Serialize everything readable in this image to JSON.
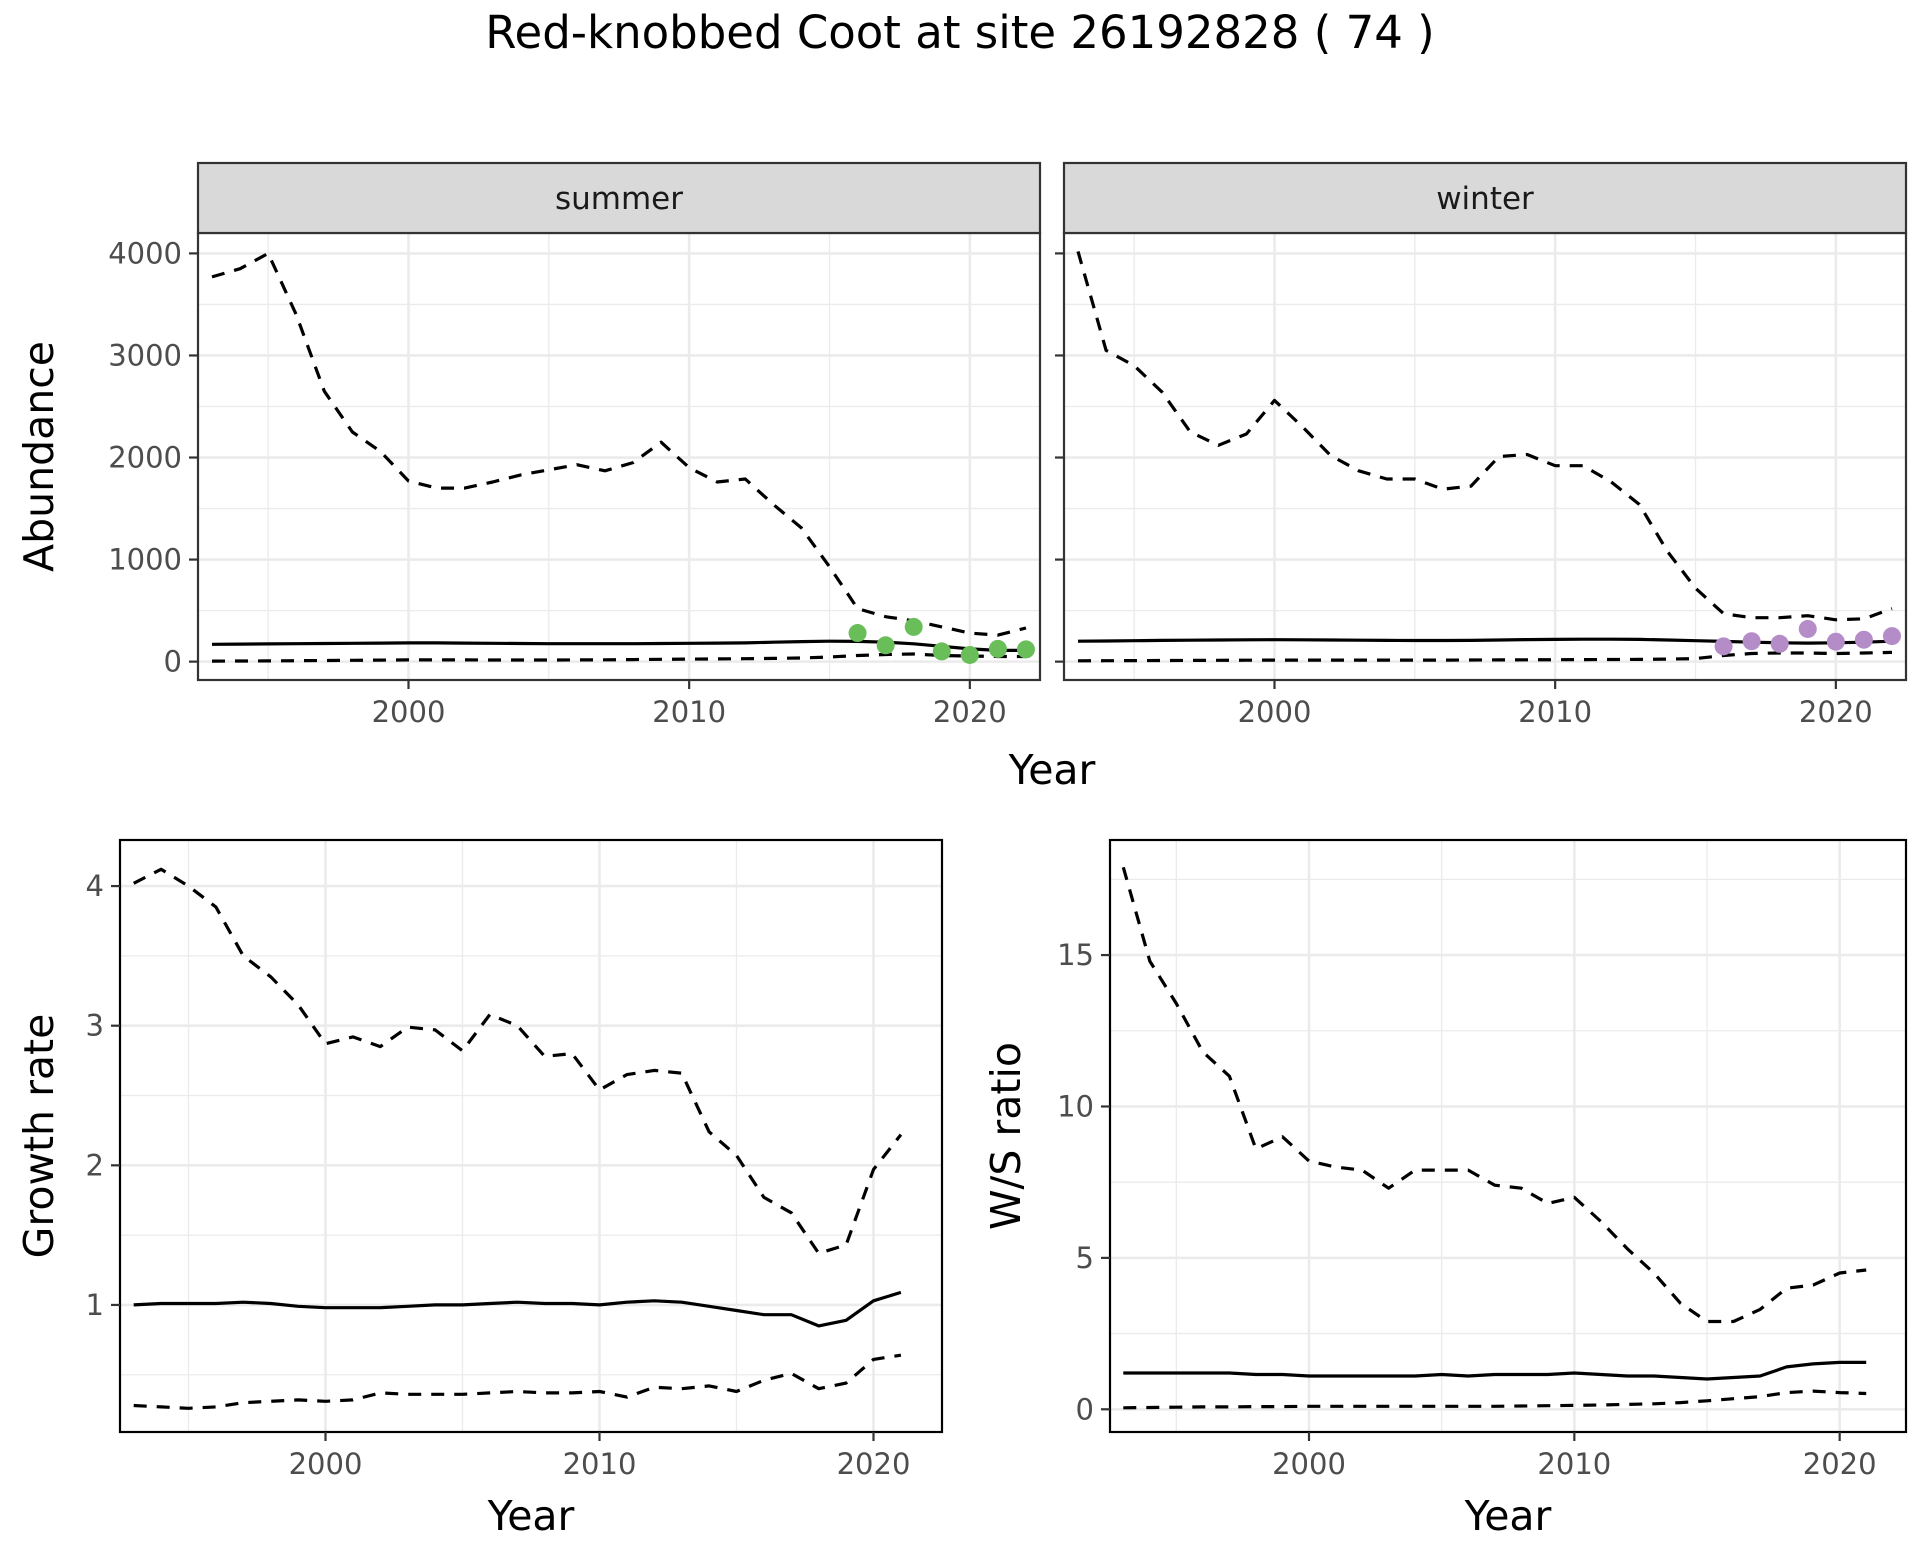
{
  "title": "Red-knobbed Coot at site 26192828 ( 74 )",
  "top_xlabel": "Year",
  "colors": {
    "summer_points": "#6abe5a",
    "winter_points": "#b48cc8",
    "grid": "#ebebeb",
    "strip_fill": "#d9d9d9",
    "line": "#000000"
  },
  "chart_data": [
    {
      "type": "line",
      "panel": "summer",
      "strip_label": "summer",
      "xlabel": "Year",
      "ylabel": "Abundance",
      "xlim": [
        1992.5,
        2022.5
      ],
      "ylim": [
        -180,
        4200
      ],
      "xticks": [
        2000,
        2010,
        2020
      ],
      "yticks": [
        0,
        1000,
        2000,
        3000,
        4000
      ],
      "grid": true,
      "x": [
        1993,
        1994,
        1995,
        1996,
        1997,
        1998,
        1999,
        2000,
        2001,
        2002,
        2003,
        2004,
        2005,
        2006,
        2007,
        2008,
        2009,
        2010,
        2011,
        2012,
        2013,
        2014,
        2015,
        2016,
        2017,
        2018,
        2019,
        2020,
        2021,
        2022
      ],
      "series": [
        {
          "role": "estimate",
          "style": "solid",
          "values": [
            170,
            172,
            174,
            176,
            178,
            180,
            182,
            184,
            184,
            182,
            180,
            178,
            176,
            176,
            176,
            176,
            178,
            180,
            182,
            184,
            190,
            196,
            200,
            198,
            190,
            175,
            150,
            125,
            110,
            110
          ]
        },
        {
          "role": "upper",
          "style": "dashed",
          "values": [
            3770,
            3850,
            4000,
            3400,
            2650,
            2250,
            2060,
            1770,
            1700,
            1700,
            1760,
            1830,
            1880,
            1930,
            1870,
            1950,
            2150,
            1900,
            1760,
            1790,
            1540,
            1310,
            930,
            520,
            440,
            400,
            340,
            280,
            260,
            330
          ]
        },
        {
          "role": "lower",
          "style": "dashed",
          "values": [
            5,
            6,
            7,
            9,
            11,
            13,
            15,
            17,
            17,
            17,
            16,
            16,
            16,
            17,
            18,
            20,
            23,
            25,
            27,
            29,
            32,
            36,
            45,
            60,
            70,
            75,
            60,
            55,
            50,
            50
          ]
        }
      ],
      "points": {
        "x": [
          2016,
          2017,
          2018,
          2019,
          2020,
          2021,
          2022
        ],
        "y": [
          280,
          160,
          340,
          100,
          65,
          125,
          120
        ]
      }
    },
    {
      "type": "line",
      "panel": "winter",
      "strip_label": "winter",
      "xlabel": "Year",
      "ylabel": "Abundance",
      "xlim": [
        1992.5,
        2022.5
      ],
      "ylim": [
        -180,
        4200
      ],
      "xticks": [
        2000,
        2010,
        2020
      ],
      "yticks": [
        0,
        1000,
        2000,
        3000,
        4000
      ],
      "grid": true,
      "x": [
        1993,
        1994,
        1995,
        1996,
        1997,
        1998,
        1999,
        2000,
        2001,
        2002,
        2003,
        2004,
        2005,
        2006,
        2007,
        2008,
        2009,
        2010,
        2011,
        2012,
        2013,
        2014,
        2015,
        2016,
        2017,
        2018,
        2019,
        2020,
        2021,
        2022
      ],
      "series": [
        {
          "role": "estimate",
          "style": "solid",
          "values": [
            200,
            202,
            205,
            208,
            210,
            212,
            214,
            215,
            214,
            212,
            210,
            208,
            207,
            207,
            208,
            212,
            216,
            218,
            220,
            220,
            218,
            212,
            205,
            198,
            190,
            185,
            182,
            185,
            190,
            200
          ]
        },
        {
          "role": "upper",
          "style": "dashed",
          "values": [
            4020,
            3050,
            2900,
            2640,
            2250,
            2120,
            2230,
            2560,
            2300,
            2020,
            1870,
            1790,
            1790,
            1690,
            1720,
            2010,
            2030,
            1920,
            1920,
            1760,
            1540,
            1080,
            720,
            470,
            430,
            430,
            450,
            410,
            420,
            520
          ]
        },
        {
          "role": "lower",
          "style": "dashed",
          "values": [
            8,
            9,
            10,
            11,
            12,
            13,
            14,
            15,
            15,
            15,
            15,
            15,
            15,
            15,
            16,
            17,
            18,
            19,
            20,
            21,
            22,
            25,
            30,
            60,
            80,
            85,
            85,
            80,
            85,
            90
          ]
        }
      ],
      "points": {
        "x": [
          2016,
          2017,
          2018,
          2019,
          2020,
          2021,
          2022
        ],
        "y": [
          150,
          200,
          175,
          320,
          195,
          215,
          250
        ]
      }
    },
    {
      "type": "line",
      "panel": "growth",
      "xlabel": "Year",
      "ylabel": "Growth rate",
      "xlim": [
        1992.5,
        2022.5
      ],
      "ylim": [
        0.09,
        4.33
      ],
      "xticks": [
        2000,
        2010,
        2020
      ],
      "yticks": [
        1,
        2,
        3,
        4
      ],
      "grid": true,
      "x": [
        1993,
        1994,
        1995,
        1996,
        1997,
        1998,
        1999,
        2000,
        2001,
        2002,
        2003,
        2004,
        2005,
        2006,
        2007,
        2008,
        2009,
        2010,
        2011,
        2012,
        2013,
        2014,
        2015,
        2016,
        2017,
        2018,
        2019,
        2020,
        2021
      ],
      "series": [
        {
          "role": "estimate",
          "style": "solid",
          "values": [
            1.0,
            1.01,
            1.01,
            1.01,
            1.02,
            1.01,
            0.99,
            0.98,
            0.98,
            0.98,
            0.99,
            1.0,
            1.0,
            1.01,
            1.02,
            1.01,
            1.01,
            1.0,
            1.02,
            1.03,
            1.02,
            0.99,
            0.96,
            0.93,
            0.93,
            0.85,
            0.89,
            1.03,
            1.09
          ]
        },
        {
          "role": "upper",
          "style": "dashed",
          "values": [
            4.02,
            4.12,
            4.0,
            3.85,
            3.5,
            3.35,
            3.15,
            2.87,
            2.92,
            2.85,
            2.99,
            2.97,
            2.82,
            3.08,
            3.0,
            2.78,
            2.8,
            2.54,
            2.65,
            2.68,
            2.66,
            2.24,
            2.07,
            1.77,
            1.66,
            1.37,
            1.43,
            1.97,
            2.22
          ]
        },
        {
          "role": "lower",
          "style": "dashed",
          "values": [
            0.28,
            0.27,
            0.26,
            0.27,
            0.3,
            0.31,
            0.32,
            0.31,
            0.32,
            0.37,
            0.36,
            0.36,
            0.36,
            0.37,
            0.38,
            0.37,
            0.37,
            0.38,
            0.34,
            0.41,
            0.4,
            0.42,
            0.38,
            0.46,
            0.51,
            0.4,
            0.44,
            0.61,
            0.64
          ]
        }
      ]
    },
    {
      "type": "line",
      "panel": "ws_ratio",
      "xlabel": "Year",
      "ylabel": "W/S ratio",
      "xlim": [
        1992.5,
        2022.5
      ],
      "ylim": [
        -0.75,
        18.8
      ],
      "xticks": [
        2000,
        2010,
        2020
      ],
      "yticks": [
        0,
        5,
        10,
        15
      ],
      "grid": true,
      "x": [
        1993,
        1994,
        1995,
        1996,
        1997,
        1998,
        1999,
        2000,
        2001,
        2002,
        2003,
        2004,
        2005,
        2006,
        2007,
        2008,
        2009,
        2010,
        2011,
        2012,
        2013,
        2014,
        2015,
        2016,
        2017,
        2018,
        2019,
        2020,
        2021
      ],
      "series": [
        {
          "role": "estimate",
          "style": "solid",
          "values": [
            1.2,
            1.2,
            1.2,
            1.2,
            1.2,
            1.15,
            1.15,
            1.1,
            1.1,
            1.1,
            1.1,
            1.1,
            1.15,
            1.1,
            1.15,
            1.15,
            1.15,
            1.2,
            1.15,
            1.1,
            1.1,
            1.05,
            1.0,
            1.05,
            1.1,
            1.4,
            1.5,
            1.55,
            1.55
          ]
        },
        {
          "role": "upper",
          "style": "dashed",
          "values": [
            17.9,
            14.8,
            13.4,
            11.8,
            11.0,
            8.6,
            9.0,
            8.2,
            8.0,
            7.9,
            7.3,
            7.9,
            7.9,
            7.9,
            7.4,
            7.3,
            6.8,
            7.0,
            6.2,
            5.3,
            4.5,
            3.5,
            2.9,
            2.9,
            3.3,
            4.0,
            4.1,
            4.5,
            4.6
          ]
        },
        {
          "role": "lower",
          "style": "dashed",
          "values": [
            0.05,
            0.06,
            0.07,
            0.08,
            0.08,
            0.09,
            0.09,
            0.1,
            0.1,
            0.1,
            0.1,
            0.1,
            0.1,
            0.1,
            0.1,
            0.11,
            0.12,
            0.13,
            0.14,
            0.16,
            0.18,
            0.22,
            0.28,
            0.35,
            0.42,
            0.55,
            0.6,
            0.55,
            0.52
          ]
        }
      ]
    }
  ]
}
